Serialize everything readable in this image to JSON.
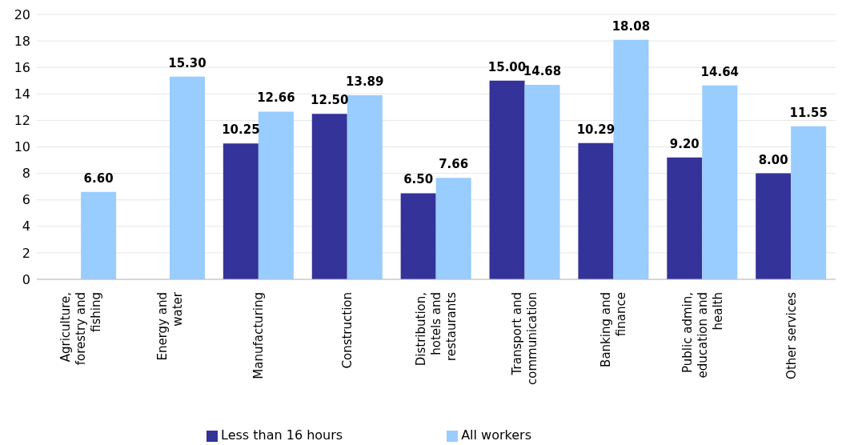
{
  "chart_data": {
    "type": "bar",
    "categories": [
      "Agriculture, forestry and fishing",
      "Energy and water",
      "Manufacturing",
      "Construction",
      "Distribution, hotels and restaurants",
      "Transport and communication",
      "Banking and finance",
      "Public admin, education and health",
      "Other services"
    ],
    "series": [
      {
        "name": "Less than 16 hours",
        "color": "#333399",
        "values": [
          null,
          null,
          10.25,
          12.5,
          6.5,
          15.0,
          10.29,
          9.2,
          8.0
        ],
        "value_labels": [
          null,
          null,
          "10.25",
          "12.50",
          "6.50",
          "15.00",
          "10.29",
          "9.20",
          "8.00"
        ]
      },
      {
        "name": "All workers",
        "color": "#99ccff",
        "values": [
          6.6,
          15.3,
          12.66,
          13.89,
          7.66,
          14.68,
          18.08,
          14.64,
          11.55
        ],
        "value_labels": [
          "6.60",
          "15.30",
          "12.66",
          "13.89",
          "7.66",
          "14.68",
          "18.08",
          "14.64",
          "11.55"
        ]
      }
    ],
    "ylim": [
      0,
      20
    ],
    "yticks": [
      0,
      2,
      4,
      6,
      8,
      10,
      12,
      14,
      16,
      18,
      20
    ],
    "grid": "y",
    "legend": "bottom"
  }
}
